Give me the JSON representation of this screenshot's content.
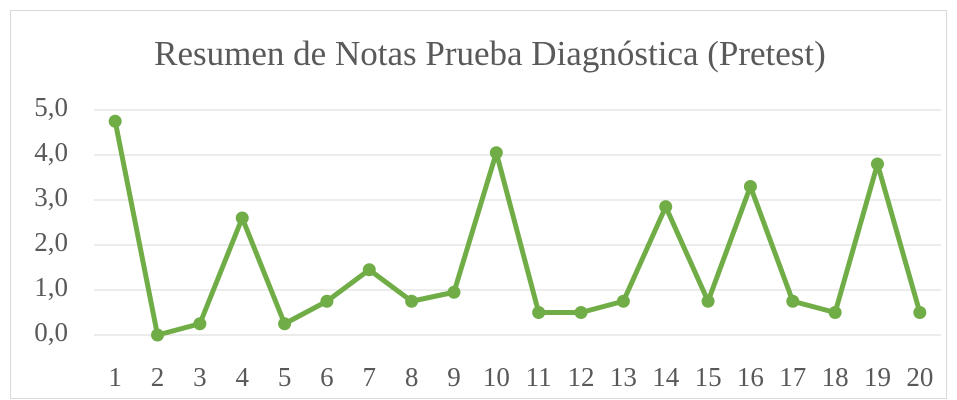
{
  "chart_data": {
    "type": "line",
    "title": "Resumen de Notas Prueba Diagnóstica (Pretest)",
    "categories": [
      "1",
      "2",
      "3",
      "4",
      "5",
      "6",
      "7",
      "8",
      "9",
      "10",
      "11",
      "12",
      "13",
      "14",
      "15",
      "16",
      "17",
      "18",
      "19",
      "20"
    ],
    "values": [
      4.75,
      0,
      0.25,
      2.6,
      0.25,
      0.75,
      1.45,
      0.75,
      0.95,
      4.05,
      0.5,
      0.5,
      0.75,
      2.85,
      0.75,
      3.3,
      0.75,
      0.5,
      3.8,
      0.5
    ],
    "color": "#70ad47",
    "ylim": [
      0,
      5
    ],
    "yticks": [
      {
        "value": 0,
        "label": "0,0"
      },
      {
        "value": 1,
        "label": "1,0"
      },
      {
        "value": 2,
        "label": "2,0"
      },
      {
        "value": 3,
        "label": "3,0"
      },
      {
        "value": 4,
        "label": "4,0"
      },
      {
        "value": 5,
        "label": "5,0"
      }
    ],
    "grid": true
  }
}
